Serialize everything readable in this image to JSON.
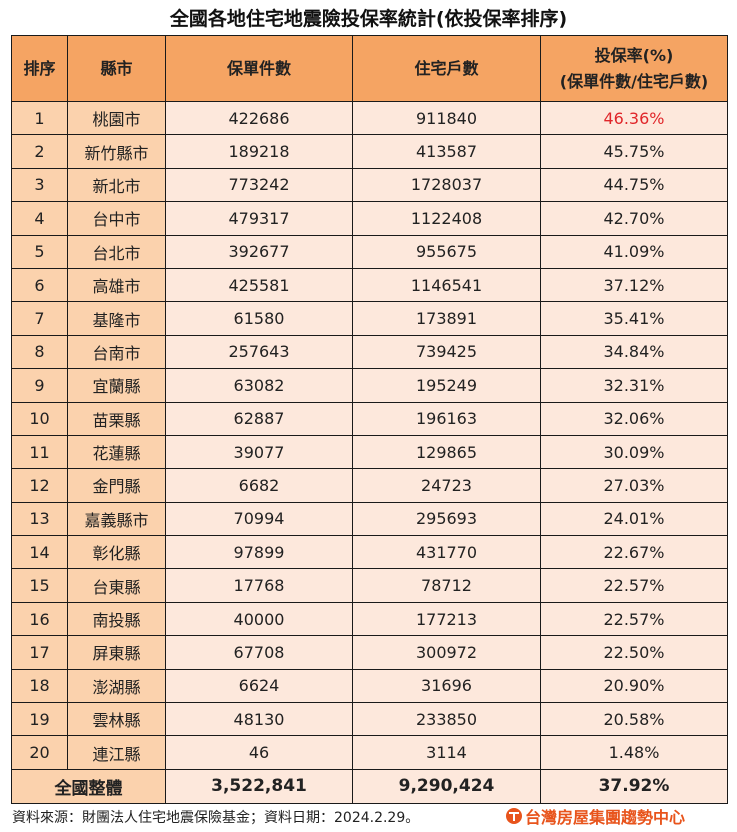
{
  "title": "全國各地住宅地震險投保率統計(依投保率排序)",
  "headers": {
    "rank": "排序",
    "county": "縣市",
    "policies": "保單件數",
    "households": "住宅戶數",
    "rate_line1": "投保率(%)",
    "rate_line2": "(保單件數/住宅戶數)"
  },
  "rows": [
    {
      "rank": "1",
      "county": "桃園市",
      "policies": "422686",
      "households": "911840",
      "rate": "46.36%"
    },
    {
      "rank": "2",
      "county": "新竹縣市",
      "policies": "189218",
      "households": "413587",
      "rate": "45.75%"
    },
    {
      "rank": "3",
      "county": "新北市",
      "policies": "773242",
      "households": "1728037",
      "rate": "44.75%"
    },
    {
      "rank": "4",
      "county": "台中市",
      "policies": "479317",
      "households": "1122408",
      "rate": "42.70%"
    },
    {
      "rank": "5",
      "county": "台北市",
      "policies": "392677",
      "households": "955675",
      "rate": "41.09%"
    },
    {
      "rank": "6",
      "county": "高雄市",
      "policies": "425581",
      "households": "1146541",
      "rate": "37.12%"
    },
    {
      "rank": "7",
      "county": "基隆市",
      "policies": "61580",
      "households": "173891",
      "rate": "35.41%"
    },
    {
      "rank": "8",
      "county": "台南市",
      "policies": "257643",
      "households": "739425",
      "rate": "34.84%"
    },
    {
      "rank": "9",
      "county": "宜蘭縣",
      "policies": "63082",
      "households": "195249",
      "rate": "32.31%"
    },
    {
      "rank": "10",
      "county": "苗栗縣",
      "policies": "62887",
      "households": "196163",
      "rate": "32.06%"
    },
    {
      "rank": "11",
      "county": "花蓮縣",
      "policies": "39077",
      "households": "129865",
      "rate": "30.09%"
    },
    {
      "rank": "12",
      "county": "金門縣",
      "policies": "6682",
      "households": "24723",
      "rate": "27.03%"
    },
    {
      "rank": "13",
      "county": "嘉義縣市",
      "policies": "70994",
      "households": "295693",
      "rate": "24.01%"
    },
    {
      "rank": "14",
      "county": "彰化縣",
      "policies": "97899",
      "households": "431770",
      "rate": "22.67%"
    },
    {
      "rank": "15",
      "county": "台東縣",
      "policies": "17768",
      "households": "78712",
      "rate": "22.57%"
    },
    {
      "rank": "16",
      "county": "南投縣",
      "policies": "40000",
      "households": "177213",
      "rate": "22.57%"
    },
    {
      "rank": "17",
      "county": "屏東縣",
      "policies": "67708",
      "households": "300972",
      "rate": "22.50%"
    },
    {
      "rank": "18",
      "county": "澎湖縣",
      "policies": "6624",
      "households": "31696",
      "rate": "20.90%"
    },
    {
      "rank": "19",
      "county": "雲林縣",
      "policies": "48130",
      "households": "233850",
      "rate": "20.58%"
    },
    {
      "rank": "20",
      "county": "連江縣",
      "policies": "46",
      "households": "3114",
      "rate": "1.48%"
    }
  ],
  "total": {
    "label": "全國整體",
    "policies": "3,522,841",
    "households": "9,290,424",
    "rate": "37.92%"
  },
  "footer": {
    "source": "資料來源：財團法人住宅地震保險基金；資料日期：2024.2.29。",
    "brand": "台灣房屋集團趨勢中心"
  },
  "colors": {
    "header_bg": "#f5a463",
    "label_col_bg": "#fbd2ad",
    "data_cell_bg": "#fde8dc",
    "highlight_text": "#e0262a",
    "brand": "#e8541c"
  },
  "chart_data": {
    "type": "table",
    "title": "全國各地住宅地震險投保率統計(依投保率排序)",
    "columns": [
      "排序",
      "縣市",
      "保單件數",
      "住宅戶數",
      "投保率(%) (保單件數/住宅戶數)"
    ],
    "categories": [
      "桃園市",
      "新竹縣市",
      "新北市",
      "台中市",
      "台北市",
      "高雄市",
      "基隆市",
      "台南市",
      "宜蘭縣",
      "苗栗縣",
      "花蓮縣",
      "金門縣",
      "嘉義縣市",
      "彰化縣",
      "台東縣",
      "南投縣",
      "屏東縣",
      "澎湖縣",
      "雲林縣",
      "連江縣"
    ],
    "series": [
      {
        "name": "保單件數",
        "values": [
          422686,
          189218,
          773242,
          479317,
          392677,
          425581,
          61580,
          257643,
          63082,
          62887,
          39077,
          6682,
          70994,
          97899,
          17768,
          40000,
          67708,
          6624,
          48130,
          46
        ]
      },
      {
        "name": "住宅戶數",
        "values": [
          911840,
          413587,
          1728037,
          1122408,
          955675,
          1146541,
          173891,
          739425,
          195249,
          196163,
          129865,
          24723,
          295693,
          431770,
          78712,
          177213,
          300972,
          31696,
          233850,
          3114
        ]
      },
      {
        "name": "投保率(%)",
        "values": [
          46.36,
          45.75,
          44.75,
          42.7,
          41.09,
          37.12,
          35.41,
          34.84,
          32.31,
          32.06,
          30.09,
          27.03,
          24.01,
          22.67,
          22.57,
          22.57,
          22.5,
          20.9,
          20.58,
          1.48
        ]
      }
    ],
    "total": {
      "label": "全國整體",
      "保單件數": 3522841,
      "住宅戶數": 9290424,
      "投保率(%)": 37.92
    },
    "annotations": [
      "資料來源：財團法人住宅地震保險基金；資料日期：2024.2.29。",
      "台灣房屋集團趨勢中心"
    ]
  }
}
